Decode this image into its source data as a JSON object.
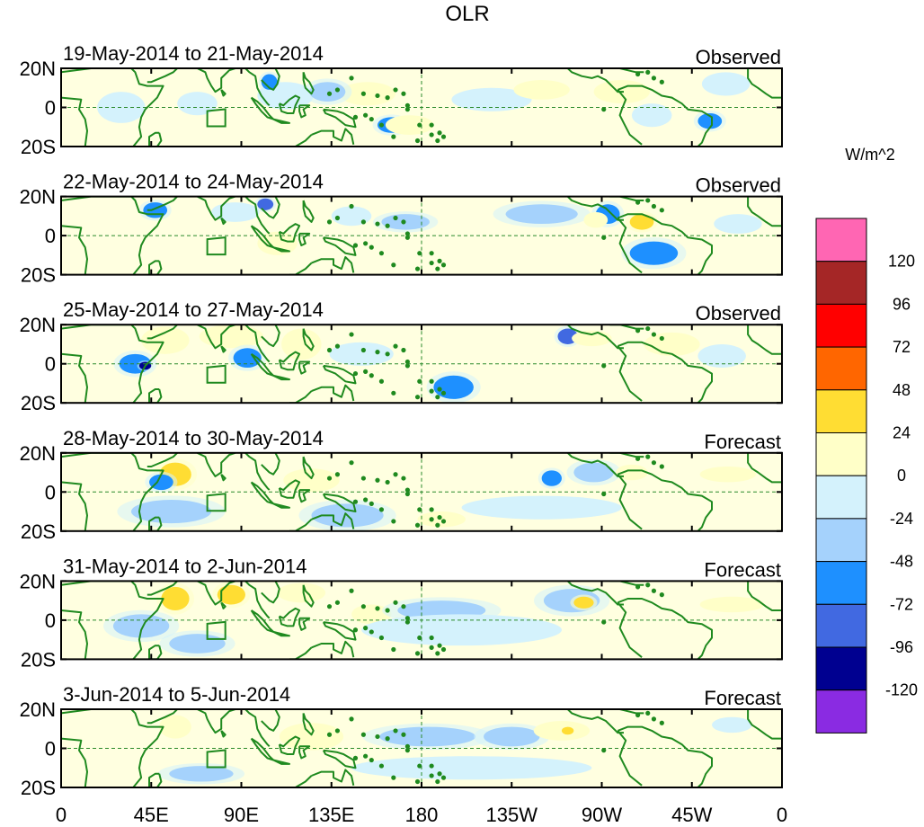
{
  "figure": {
    "title": "OLR",
    "units_label": "W/m^2"
  },
  "colors": {
    "land": "#1f8a1f",
    "frame": "#000000",
    "ref_line": "#2a8a2a",
    "background": "#ffffe0"
  },
  "panels": [
    {
      "period": "19-May-2014 to 21-May-2014",
      "kind": "Observed",
      "anomalies": [
        {
          "lon": 68,
          "lat": 2,
          "rlon": 10,
          "rlat": 6,
          "level": -24
        },
        {
          "lon": 112,
          "lat": 6,
          "rlon": 14,
          "rlat": 7,
          "level": -24
        },
        {
          "lon": 104,
          "lat": 13,
          "rlon": 4,
          "rlat": 4,
          "level": -72
        },
        {
          "lon": 153,
          "lat": 7,
          "rlon": 14,
          "rlat": 6,
          "level": 24
        },
        {
          "lon": 165,
          "lat": -9,
          "rlon": 7,
          "rlat": 4,
          "level": -72
        },
        {
          "lon": 174,
          "lat": -9,
          "rlon": 12,
          "rlat": 5,
          "level": 24
        },
        {
          "lon": 215,
          "lat": 4,
          "rlon": 20,
          "rlat": 6,
          "level": -24
        },
        {
          "lon": 280,
          "lat": 8,
          "rlon": 14,
          "rlat": 6,
          "level": 24
        },
        {
          "lon": 295,
          "lat": -4,
          "rlon": 10,
          "rlat": 6,
          "level": -24
        },
        {
          "lon": 324,
          "lat": -7,
          "rlon": 6,
          "rlat": 4,
          "level": -72
        },
        {
          "lon": 332,
          "lat": 12,
          "rlon": 12,
          "rlat": 6,
          "level": -24
        },
        {
          "lon": 30,
          "lat": 0,
          "rlon": 12,
          "rlat": 8,
          "level": -24
        },
        {
          "lon": 240,
          "lat": 9,
          "rlon": 14,
          "rlat": 5,
          "level": 24
        },
        {
          "lon": 133,
          "lat": 8,
          "rlon": 9,
          "rlat": 5,
          "level": -48
        }
      ]
    },
    {
      "period": "22-May-2014 to 24-May-2014",
      "kind": "Observed",
      "anomalies": [
        {
          "lon": 47,
          "lat": 13,
          "rlon": 6,
          "rlat": 4,
          "level": -72
        },
        {
          "lon": 102,
          "lat": 16,
          "rlon": 4,
          "rlat": 3,
          "level": -96
        },
        {
          "lon": 87,
          "lat": 12,
          "rlon": 12,
          "rlat": 5,
          "level": -24
        },
        {
          "lon": 108,
          "lat": -4,
          "rlon": 10,
          "rlat": 6,
          "level": 24
        },
        {
          "lon": 172,
          "lat": 7,
          "rlon": 12,
          "rlat": 4,
          "level": -48
        },
        {
          "lon": 145,
          "lat": 10,
          "rlon": 10,
          "rlat": 5,
          "level": -24
        },
        {
          "lon": 240,
          "lat": 11,
          "rlon": 18,
          "rlat": 5,
          "level": -48
        },
        {
          "lon": 273,
          "lat": 11,
          "rlon": 6,
          "rlat": 5,
          "level": -72
        },
        {
          "lon": 290,
          "lat": 7,
          "rlon": 6,
          "rlat": 4,
          "level": 48
        },
        {
          "lon": 296,
          "lat": -9,
          "rlon": 12,
          "rlat": 6,
          "level": -72
        },
        {
          "lon": 267,
          "lat": 8,
          "rlon": 6,
          "rlat": 4,
          "level": 24
        },
        {
          "lon": 200,
          "lat": -2,
          "rlon": 30,
          "rlat": 5,
          "level": 0
        },
        {
          "lon": 338,
          "lat": 6,
          "rlon": 12,
          "rlat": 5,
          "level": -24
        }
      ]
    },
    {
      "period": "25-May-2014 to 27-May-2014",
      "kind": "Observed",
      "anomalies": [
        {
          "lon": 37,
          "lat": 0,
          "rlon": 8,
          "rlat": 5,
          "level": -72
        },
        {
          "lon": 42,
          "lat": -1,
          "rlon": 3,
          "rlat": 2,
          "level": -120
        },
        {
          "lon": 52,
          "lat": 12,
          "rlon": 12,
          "rlat": 7,
          "level": 24
        },
        {
          "lon": 85,
          "lat": 14,
          "rlon": 16,
          "rlat": 6,
          "level": 24
        },
        {
          "lon": 120,
          "lat": 10,
          "rlon": 10,
          "rlat": 8,
          "level": 24
        },
        {
          "lon": 93,
          "lat": 3,
          "rlon": 7,
          "rlat": 5,
          "level": -72
        },
        {
          "lon": 253,
          "lat": 14,
          "rlon": 5,
          "rlat": 4,
          "level": -96
        },
        {
          "lon": 265,
          "lat": 13,
          "rlon": 10,
          "rlat": 4,
          "level": 24
        },
        {
          "lon": 196,
          "lat": -12,
          "rlon": 10,
          "rlat": 6,
          "level": -72
        },
        {
          "lon": 150,
          "lat": 5,
          "rlon": 16,
          "rlat": 6,
          "level": -24
        },
        {
          "lon": 305,
          "lat": 10,
          "rlon": 14,
          "rlat": 6,
          "level": 24
        },
        {
          "lon": 330,
          "lat": 4,
          "rlon": 12,
          "rlat": 6,
          "level": -24
        }
      ]
    },
    {
      "period": "28-May-2014 to 30-May-2014",
      "kind": "Forecast",
      "anomalies": [
        {
          "lon": 57,
          "lat": 9,
          "rlon": 8,
          "rlat": 6,
          "level": 48
        },
        {
          "lon": 50,
          "lat": 5,
          "rlon": 6,
          "rlat": 4,
          "level": -72
        },
        {
          "lon": 55,
          "lat": -10,
          "rlon": 20,
          "rlat": 6,
          "level": -48
        },
        {
          "lon": 125,
          "lat": 6,
          "rlon": 14,
          "rlat": 6,
          "level": 24
        },
        {
          "lon": 143,
          "lat": -12,
          "rlon": 18,
          "rlat": 6,
          "level": -48
        },
        {
          "lon": 190,
          "lat": -14,
          "rlon": 12,
          "rlat": 4,
          "level": 24
        },
        {
          "lon": 245,
          "lat": 7,
          "rlon": 5,
          "rlat": 4,
          "level": -72
        },
        {
          "lon": 266,
          "lat": 10,
          "rlon": 10,
          "rlat": 5,
          "level": -48
        },
        {
          "lon": 285,
          "lat": 10,
          "rlon": 8,
          "rlat": 4,
          "level": 24
        },
        {
          "lon": 333,
          "lat": 9,
          "rlon": 14,
          "rlat": 4,
          "level": 24
        },
        {
          "lon": 240,
          "lat": -8,
          "rlon": 40,
          "rlat": 6,
          "level": -24
        }
      ]
    },
    {
      "period": "31-May-2014 to 2-Jun-2014",
      "kind": "Forecast",
      "anomalies": [
        {
          "lon": 57,
          "lat": 11,
          "rlon": 7,
          "rlat": 6,
          "level": 48
        },
        {
          "lon": 85,
          "lat": 13,
          "rlon": 7,
          "rlat": 5,
          "level": 48
        },
        {
          "lon": 40,
          "lat": -3,
          "rlon": 14,
          "rlat": 6,
          "level": -48
        },
        {
          "lon": 68,
          "lat": -12,
          "rlon": 14,
          "rlat": 5,
          "level": -48
        },
        {
          "lon": 155,
          "lat": 3,
          "rlon": 10,
          "rlat": 5,
          "level": 24
        },
        {
          "lon": 190,
          "lat": 5,
          "rlon": 22,
          "rlat": 5,
          "level": -48
        },
        {
          "lon": 255,
          "lat": 10,
          "rlon": 14,
          "rlat": 6,
          "level": -48
        },
        {
          "lon": 261,
          "lat": 9,
          "rlon": 5,
          "rlat": 3,
          "level": 48
        },
        {
          "lon": 335,
          "lat": 8,
          "rlon": 16,
          "rlat": 4,
          "level": 24
        },
        {
          "lon": 200,
          "lat": -5,
          "rlon": 50,
          "rlat": 8,
          "level": -24
        },
        {
          "lon": 120,
          "lat": 14,
          "rlon": 12,
          "rlat": 5,
          "level": 24
        }
      ]
    },
    {
      "period": "3-Jun-2014 to 5-Jun-2014",
      "kind": "Forecast",
      "anomalies": [
        {
          "lon": 57,
          "lat": 11,
          "rlon": 8,
          "rlat": 6,
          "level": 24
        },
        {
          "lon": 70,
          "lat": -13,
          "rlon": 16,
          "rlat": 4,
          "level": -48
        },
        {
          "lon": 125,
          "lat": 6,
          "rlon": 16,
          "rlat": 7,
          "level": 24
        },
        {
          "lon": 183,
          "lat": 6,
          "rlon": 24,
          "rlat": 5,
          "level": -48
        },
        {
          "lon": 225,
          "lat": 6,
          "rlon": 14,
          "rlat": 5,
          "level": -48
        },
        {
          "lon": 250,
          "lat": 9,
          "rlon": 14,
          "rlat": 5,
          "level": 24
        },
        {
          "lon": 253,
          "lat": 9,
          "rlon": 3,
          "rlat": 2,
          "level": 48
        },
        {
          "lon": 205,
          "lat": -10,
          "rlon": 60,
          "rlat": 6,
          "level": -24
        },
        {
          "lon": 335,
          "lat": 12,
          "rlon": 10,
          "rlat": 4,
          "level": -24
        }
      ]
    }
  ],
  "y_ticks": [
    "20N",
    "0",
    "20S"
  ],
  "x_ticks": [
    "0",
    "45E",
    "90E",
    "135E",
    "180",
    "135W",
    "90W",
    "45W",
    "0"
  ],
  "legend": {
    "boundaries": [
      "120",
      "96",
      "72",
      "48",
      "24",
      "0",
      "-24",
      "-48",
      "-72",
      "-96",
      "-120"
    ],
    "levels": [
      {
        "level": 144,
        "color": "#ff66b3"
      },
      {
        "level": 120,
        "color": "#a52626"
      },
      {
        "level": 96,
        "color": "#ff0000"
      },
      {
        "level": 72,
        "color": "#ff6600"
      },
      {
        "level": 48,
        "color": "#ffdd33"
      },
      {
        "level": 24,
        "color": "#ffffc8"
      },
      {
        "level": -24,
        "color": "#d4f2fc"
      },
      {
        "level": -48,
        "color": "#a5d2fc"
      },
      {
        "level": -72,
        "color": "#1e90ff"
      },
      {
        "level": -96,
        "color": "#4169e1"
      },
      {
        "level": -120,
        "color": "#000090"
      },
      {
        "level": -144,
        "color": "#8a2be2"
      }
    ]
  }
}
